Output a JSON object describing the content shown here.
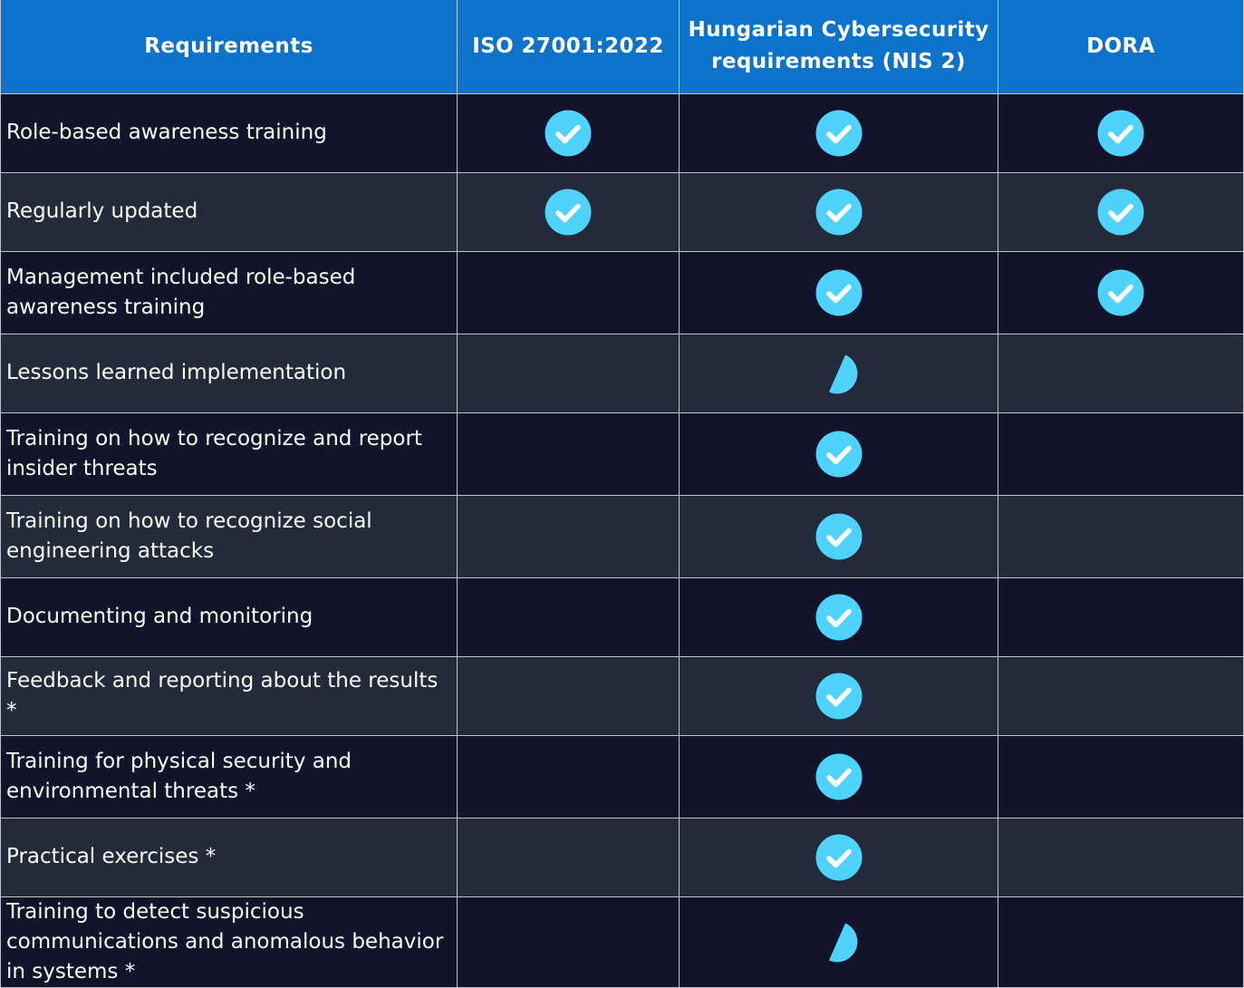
{
  "colors": {
    "header_bg": "#0d72c9",
    "row_dark": "#13132b",
    "row_alt": "#252a3b",
    "check": "#4fd2fb",
    "grid_line": "#bcc3cf"
  },
  "columns": [
    "Requirements",
    "ISO 27001:2022",
    "Hungarian Cybersecurity requirements (NIS 2)",
    "DORA"
  ],
  "rows": [
    {
      "requirement": "Role-based awareness training",
      "iso": "full",
      "nis2": "full",
      "dora": "full"
    },
    {
      "requirement": "Regularly updated",
      "iso": "full",
      "nis2": "full",
      "dora": "full"
    },
    {
      "requirement": "Management included role-based awareness training",
      "iso": "none",
      "nis2": "full",
      "dora": "full"
    },
    {
      "requirement": "Lessons learned implementation",
      "iso": "none",
      "nis2": "partial",
      "dora": "none"
    },
    {
      "requirement": "Training on how to recognize and report insider threats",
      "iso": "none",
      "nis2": "full",
      "dora": "none"
    },
    {
      "requirement": "Training on how to recognize social engineering attacks",
      "iso": "none",
      "nis2": "full",
      "dora": "none"
    },
    {
      "requirement": "Documenting and monitoring",
      "iso": "none",
      "nis2": "full",
      "dora": "none"
    },
    {
      "requirement": "Feedback and reporting about the results *",
      "iso": "none",
      "nis2": "full",
      "dora": "none"
    },
    {
      "requirement": "Training for physical security and environmental threats *",
      "iso": "none",
      "nis2": "full",
      "dora": "none"
    },
    {
      "requirement": "Practical exercises *",
      "iso": "none",
      "nis2": "full",
      "dora": "none"
    },
    {
      "requirement": "Training to detect suspicious communications and anomalous behavior in systems *",
      "iso": "none",
      "nis2": "partial",
      "dora": "none"
    }
  ],
  "icons": {
    "full": "check-circle-icon",
    "partial": "partial-pie-icon"
  }
}
